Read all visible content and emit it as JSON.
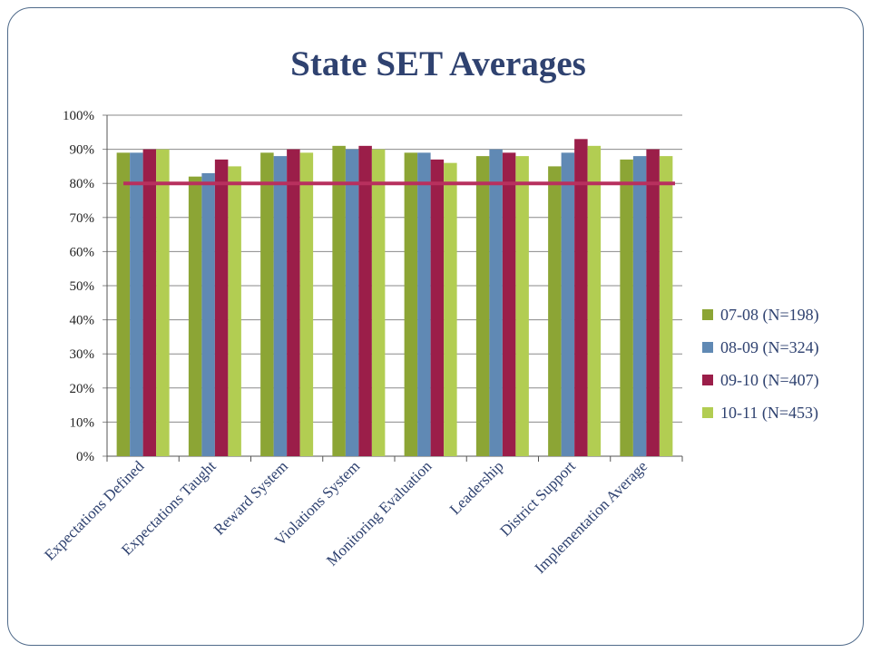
{
  "slide": {
    "title": "State SET Averages"
  },
  "colors": {
    "series": [
      "#8ca535",
      "#6089b4",
      "#9b1e49",
      "#b2cd52"
    ],
    "reference_line": "#b8305e",
    "grid": "#8a8a8a",
    "frame": "#4f6a8a",
    "title": "#2f4270"
  },
  "chart_data": {
    "type": "bar",
    "title": "State SET Averages",
    "xlabel": "",
    "ylabel": "",
    "ylim": [
      0,
      100
    ],
    "y_ticks": [
      "0%",
      "10%",
      "20%",
      "30%",
      "40%",
      "50%",
      "60%",
      "70%",
      "80%",
      "90%",
      "100%"
    ],
    "grid": true,
    "legend_position": "right",
    "categories": [
      "Expectations Defined",
      "Expectations Taught",
      "Reward System",
      "Violations System",
      "Monitoring Evaluation",
      "Leadership",
      "District Support",
      "Implementation Average"
    ],
    "series": [
      {
        "name": "07-08 (N=198)",
        "values": [
          89,
          82,
          89,
          91,
          89,
          88,
          85,
          87
        ]
      },
      {
        "name": "08-09 (N=324)",
        "values": [
          89,
          83,
          88,
          90,
          89,
          90,
          89,
          88
        ]
      },
      {
        "name": "09-10 (N=407)",
        "values": [
          90,
          87,
          90,
          91,
          87,
          89,
          93,
          90
        ]
      },
      {
        "name": "10-11 (N=453)",
        "values": [
          90,
          85,
          89,
          90,
          86,
          88,
          91,
          88
        ]
      }
    ],
    "reference_line": {
      "value": 80
    }
  }
}
